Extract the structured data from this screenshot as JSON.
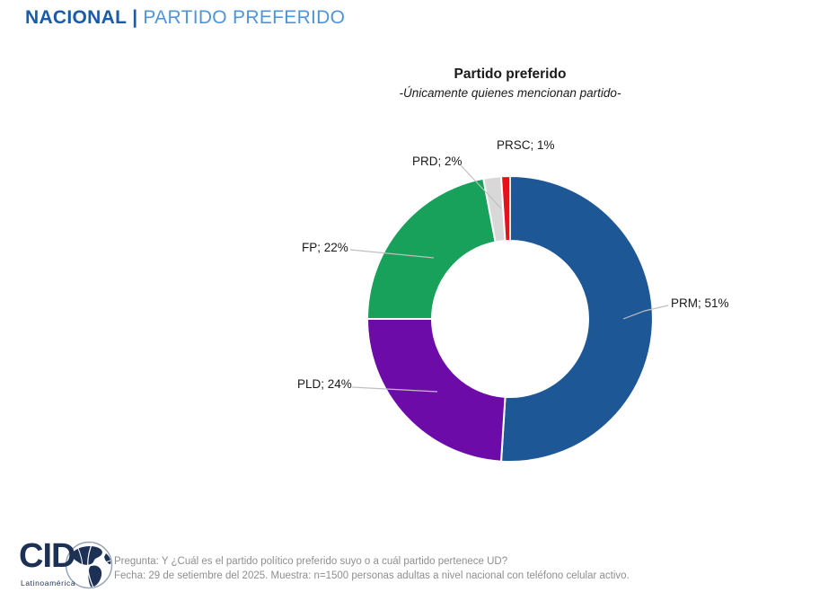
{
  "header": {
    "section": "NACIONAL",
    "separator": "|",
    "title": "PARTIDO PREFERIDO"
  },
  "chart_data": {
    "type": "pie",
    "variant": "donut",
    "title": "Partido preferido",
    "subtitle": "-Únicamente quienes mencionan partido-",
    "start_angle_deg": 0,
    "direction": "clockwise",
    "inner_radius_ratio": 0.55,
    "segment_border_color": "#ffffff",
    "leader_line_color": "#bfbfbf",
    "segments": [
      {
        "label": "PRM",
        "value": 51,
        "display": "PRM; 51%",
        "color": "#1e5796"
      },
      {
        "label": "PLD",
        "value": 24,
        "display": "PLD; 24%",
        "color": "#6d0ba8"
      },
      {
        "label": "FP",
        "value": 22,
        "display": "FP; 22%",
        "color": "#17a15a"
      },
      {
        "label": "PRD",
        "value": 2,
        "display": "PRD; 2%",
        "color": "#d8d8d8"
      },
      {
        "label": "PRSC",
        "value": 1,
        "display": "PRSC; 1%",
        "color": "#e2131b"
      }
    ]
  },
  "footer": {
    "logo": {
      "text": "CID",
      "subtext": "Latinoamérica",
      "icon": "globe-americas-icon",
      "color": "#1d3156"
    },
    "line1": "Pregunta: Y ¿Cuál es el partido político preferido suyo o a cuál partido pertenece UD?",
    "line2": "Fecha: 29 de setiembre del 2025. Muestra: n=1500 personas adultas  a nivel nacional con teléfono celular activo."
  },
  "colors": {
    "header_dark_blue": "#1a5ca8",
    "header_light_blue": "#4e95d9",
    "label_text": "#1a1a1a",
    "footer_text": "#8f8f8f"
  }
}
